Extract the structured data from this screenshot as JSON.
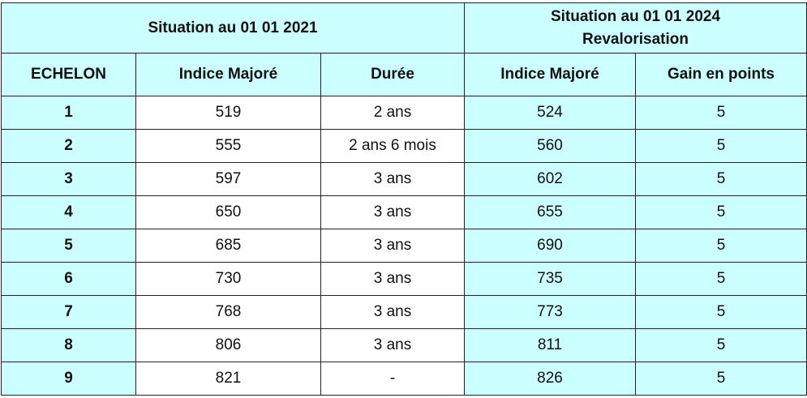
{
  "header": {
    "group_left": "Situation au 01 01 2021",
    "group_right_line1": "Situation au 01 01 2024",
    "group_right_line2": "Revalorisation",
    "columns": [
      "ECHELON",
      "Indice Majoré",
      "Durée",
      "Indice Majoré",
      "Gain en points"
    ]
  },
  "rows": [
    [
      "1",
      "519",
      "2 ans",
      "524",
      "5"
    ],
    [
      "2",
      "555",
      "2 ans 6 mois",
      "560",
      "5"
    ],
    [
      "3",
      "597",
      "3 ans",
      "602",
      "5"
    ],
    [
      "4",
      "650",
      "3 ans",
      "655",
      "5"
    ],
    [
      "5",
      "685",
      "3 ans",
      "690",
      "5"
    ],
    [
      "6",
      "730",
      "3 ans",
      "735",
      "5"
    ],
    [
      "7",
      "768",
      "3 ans",
      "773",
      "5"
    ],
    [
      "8",
      "806",
      "3 ans",
      "811",
      "5"
    ],
    [
      "9",
      "821",
      "-",
      "826",
      "5"
    ]
  ],
  "colors": {
    "header_bg": "#ccffff",
    "cell_bg": "#ffffff",
    "border": "#222222"
  }
}
